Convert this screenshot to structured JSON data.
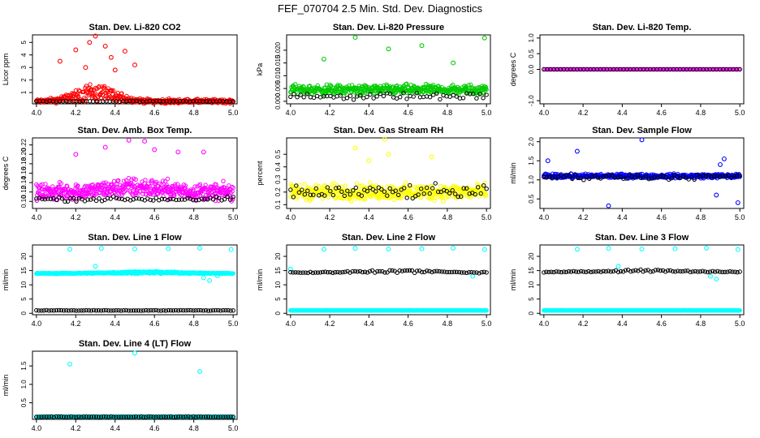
{
  "page": {
    "title": "FEF_070704  2.5 Min. Std. Dev. Diagnostics"
  },
  "colors": {
    "red": "#ff0000",
    "green": "#00cc00",
    "magenta": "#ff00ff",
    "yellow": "#ffff00",
    "blue": "#0000ff",
    "cyan": "#00ffff",
    "black": "#000000"
  },
  "chart_data": [
    {
      "type": "scatter",
      "title": "Stan. Dev. Li-820 CO2",
      "ylabel": "Licor ppm",
      "xlabel": "",
      "xlim": [
        3.98,
        5.02
      ],
      "ylim": [
        0.1,
        5.6
      ],
      "xticks": [
        "4.0",
        "4.2",
        "4.4",
        "4.6",
        "4.8",
        "5.0"
      ],
      "yticks": [
        "1",
        "2",
        "3",
        "4",
        "5"
      ],
      "series": [
        {
          "name": "main",
          "color": "red",
          "n": 400,
          "base": 0.3,
          "noise": 0.25,
          "bumps": [
            [
              4.3,
              1.3,
              0.15
            ]
          ],
          "outliers": [
            [
              4.3,
              5.5
            ],
            [
              4.27,
              5.0
            ],
            [
              4.35,
              4.7
            ],
            [
              4.2,
              4.4
            ],
            [
              4.45,
              4.3
            ],
            [
              4.38,
              3.8
            ],
            [
              4.12,
              3.5
            ],
            [
              4.5,
              3.2
            ],
            [
              4.25,
              3.0
            ],
            [
              4.4,
              2.8
            ]
          ]
        },
        {
          "name": "ref",
          "color": "black",
          "n": 60,
          "base": 0.3,
          "noise": 0.04
        }
      ]
    },
    {
      "type": "scatter",
      "title": "Stan. Dev. Li-820 Pressure",
      "ylabel": "kPa",
      "xlabel": "",
      "xlim": [
        3.98,
        5.02
      ],
      "ylim": [
        -0.001,
        0.026
      ],
      "xticks": [
        "4.0",
        "4.2",
        "4.4",
        "4.6",
        "4.8",
        "5.0"
      ],
      "yticks": [
        "0.000",
        "0.005",
        "0.010",
        "0.015",
        "0.020"
      ],
      "series": [
        {
          "name": "main",
          "color": "green",
          "n": 450,
          "base": 0.0045,
          "noise": 0.0028,
          "outliers": [
            [
              4.33,
              0.025
            ],
            [
              4.99,
              0.0248
            ],
            [
              4.5,
              0.0205
            ],
            [
              4.67,
              0.0218
            ],
            [
              4.83,
              0.015
            ],
            [
              4.17,
              0.0165
            ]
          ]
        },
        {
          "name": "ref",
          "color": "black",
          "n": 60,
          "base": 0.002,
          "noise": 0.0018
        }
      ]
    },
    {
      "type": "scatter",
      "title": "Stan. Dev. Li-820 Temp.",
      "ylabel": "degrees C",
      "xlabel": "",
      "xlim": [
        3.98,
        5.02
      ],
      "ylim": [
        -1.1,
        1.1
      ],
      "xticks": [
        "4.0",
        "4.2",
        "4.4",
        "4.6",
        "4.8",
        "5.0"
      ],
      "yticks": [
        "-1.0",
        "0.0",
        "0.5",
        "1.0"
      ],
      "series": [
        {
          "name": "main",
          "color": "magenta",
          "n": 150,
          "base": 0.0,
          "noise": 0.0
        },
        {
          "name": "ref",
          "color": "black",
          "n": 60,
          "base": 0.0,
          "noise": 0.0
        }
      ]
    },
    {
      "type": "scatter",
      "title": "Stan. Dev. Amb. Box Temp.",
      "ylabel": "degrees C",
      "xlabel": "",
      "xlim": [
        3.98,
        5.02
      ],
      "ylim": [
        0.085,
        0.235
      ],
      "xticks": [
        "4.0",
        "4.2",
        "4.4",
        "4.6",
        "4.8",
        "5.0"
      ],
      "yticks": [
        "0.10",
        "0.12",
        "0.14",
        "0.16",
        "0.18",
        "0.20",
        "0.22"
      ],
      "series": [
        {
          "name": "main",
          "color": "magenta",
          "n": 500,
          "base": 0.12,
          "noise": 0.025,
          "bumps": [
            [
              4.5,
              0.02,
              0.2
            ]
          ],
          "outliers": [
            [
              4.47,
              0.23
            ],
            [
              4.55,
              0.228
            ],
            [
              4.35,
              0.215
            ],
            [
              4.72,
              0.205
            ],
            [
              4.2,
              0.2
            ],
            [
              4.85,
              0.205
            ],
            [
              4.6,
              0.21
            ]
          ]
        },
        {
          "name": "ref",
          "color": "black",
          "n": 70,
          "base": 0.105,
          "noise": 0.007
        }
      ]
    },
    {
      "type": "scatter",
      "title": "Stan. Dev. Gas Stream RH",
      "ylabel": "percent",
      "xlabel": "",
      "xlim": [
        3.98,
        5.02
      ],
      "ylim": [
        0.07,
        0.63
      ],
      "xticks": [
        "4.0",
        "4.2",
        "4.4",
        "4.6",
        "4.8",
        "5.0"
      ],
      "yticks": [
        "0.1",
        "0.2",
        "0.3",
        "0.4",
        "0.5"
      ],
      "series": [
        {
          "name": "main",
          "color": "yellow",
          "n": 450,
          "base": 0.2,
          "noise": 0.09,
          "outliers": [
            [
              4.48,
              0.62
            ],
            [
              4.33,
              0.55
            ],
            [
              4.5,
              0.5
            ],
            [
              4.4,
              0.45
            ],
            [
              4.72,
              0.48
            ]
          ]
        },
        {
          "name": "ref",
          "color": "black",
          "n": 70,
          "base": 0.2,
          "noise": 0.08
        }
      ]
    },
    {
      "type": "scatter",
      "title": "Stan. Dev. Sample Flow",
      "ylabel": "ml/min",
      "xlabel": "",
      "xlim": [
        3.98,
        5.02
      ],
      "ylim": [
        0.25,
        2.1
      ],
      "xticks": [
        "4.0",
        "4.2",
        "4.4",
        "4.6",
        "4.8",
        "5.0"
      ],
      "yticks": [
        "0.5",
        "1.0",
        "1.5",
        "2.0"
      ],
      "series": [
        {
          "name": "main",
          "color": "blue",
          "n": 450,
          "base": 1.1,
          "noise": 0.08,
          "outliers": [
            [
              4.5,
              2.05
            ],
            [
              4.17,
              1.75
            ],
            [
              4.02,
              1.5
            ],
            [
              4.92,
              1.55
            ],
            [
              4.88,
              0.6
            ],
            [
              4.33,
              0.32
            ],
            [
              4.99,
              0.4
            ],
            [
              4.9,
              1.4
            ]
          ]
        },
        {
          "name": "ref",
          "color": "black",
          "n": 70,
          "base": 1.08,
          "noise": 0.1
        }
      ]
    },
    {
      "type": "scatter",
      "title": "Stan. Dev. Line 1 Flow",
      "ylabel": "ml/min",
      "xlabel": "",
      "xlim": [
        3.98,
        5.02
      ],
      "ylim": [
        -0.5,
        24
      ],
      "xticks": [
        "4.0",
        "4.2",
        "4.4",
        "4.6",
        "4.8",
        "5.0"
      ],
      "yticks": [
        "0",
        "5",
        "10",
        "15",
        "20"
      ],
      "series": [
        {
          "name": "main",
          "color": "cyan",
          "n": 450,
          "base": 14.0,
          "noise": 0.25,
          "bumps": [
            [
              4.55,
              0.7,
              0.25
            ]
          ],
          "outliers": [
            [
              4.17,
              22.5
            ],
            [
              4.33,
              22.8
            ],
            [
              4.5,
              22.6
            ],
            [
              4.67,
              22.7
            ],
            [
              4.83,
              22.9
            ],
            [
              4.99,
              22.4
            ],
            [
              4.3,
              16.5
            ],
            [
              4.88,
              11.5
            ],
            [
              4.85,
              12.5
            ],
            [
              4.92,
              13.2
            ]
          ]
        },
        {
          "name": "ref",
          "color": "black",
          "n": 80,
          "base": 1.0,
          "noise": 0.12
        }
      ]
    },
    {
      "type": "scatter",
      "title": "Stan. Dev. Line 2 Flow",
      "ylabel": "ml/min",
      "xlabel": "",
      "xlim": [
        3.98,
        5.02
      ],
      "ylim": [
        -0.5,
        24
      ],
      "xticks": [
        "4.0",
        "4.2",
        "4.4",
        "4.6",
        "4.8",
        "5.0"
      ],
      "yticks": [
        "0",
        "5",
        "10",
        "15",
        "20"
      ],
      "series": [
        {
          "name": "main",
          "color": "cyan",
          "n": 450,
          "base": 1.0,
          "noise": 0.08,
          "outliers": [
            [
              4.17,
              22.5
            ],
            [
              4.33,
              22.8
            ],
            [
              4.5,
              22.6
            ],
            [
              4.67,
              22.7
            ],
            [
              4.83,
              22.9
            ],
            [
              4.99,
              22.4
            ],
            [
              4.0,
              15.5
            ],
            [
              4.93,
              13.0
            ]
          ]
        },
        {
          "name": "ref",
          "color": "black",
          "n": 80,
          "base": 14.3,
          "noise": 0.3,
          "bumps": [
            [
              4.55,
              1.0,
              0.25
            ]
          ]
        }
      ]
    },
    {
      "type": "scatter",
      "title": "Stan. Dev. Line 3 Flow",
      "ylabel": "ml/min",
      "xlabel": "",
      "xlim": [
        3.98,
        5.02
      ],
      "ylim": [
        -0.5,
        24
      ],
      "xticks": [
        "4.0",
        "4.2",
        "4.4",
        "4.6",
        "4.8",
        "5.0"
      ],
      "yticks": [
        "0",
        "5",
        "10",
        "15",
        "20"
      ],
      "series": [
        {
          "name": "main",
          "color": "cyan",
          "n": 450,
          "base": 1.0,
          "noise": 0.08,
          "outliers": [
            [
              4.17,
              22.5
            ],
            [
              4.33,
              22.8
            ],
            [
              4.5,
              22.6
            ],
            [
              4.67,
              22.7
            ],
            [
              4.83,
              22.9
            ],
            [
              4.99,
              22.4
            ],
            [
              4.38,
              16.5
            ],
            [
              4.88,
              12.0
            ],
            [
              4.85,
              13.0
            ]
          ]
        },
        {
          "name": "ref",
          "color": "black",
          "n": 80,
          "base": 14.5,
          "noise": 0.3,
          "bumps": [
            [
              4.55,
              1.0,
              0.25
            ]
          ]
        }
      ]
    },
    {
      "type": "scatter",
      "title": "Stan. Dev. Line 4 (LT) Flow",
      "ylabel": "ml/min",
      "xlabel": "",
      "xlim": [
        3.98,
        5.02
      ],
      "ylim": [
        0.05,
        1.9
      ],
      "xticks": [
        "4.0",
        "4.2",
        "4.4",
        "4.6",
        "4.8",
        "5.0"
      ],
      "yticks": [
        "0.5",
        "1.0",
        "1.5"
      ],
      "series": [
        {
          "name": "main",
          "color": "cyan",
          "n": 400,
          "base": 0.12,
          "noise": 0.01,
          "outliers": [
            [
              4.17,
              1.55
            ],
            [
              4.5,
              1.85
            ],
            [
              4.83,
              1.35
            ]
          ]
        },
        {
          "name": "ref",
          "color": "black",
          "n": 80,
          "base": 0.12,
          "noise": 0.012
        }
      ]
    }
  ]
}
